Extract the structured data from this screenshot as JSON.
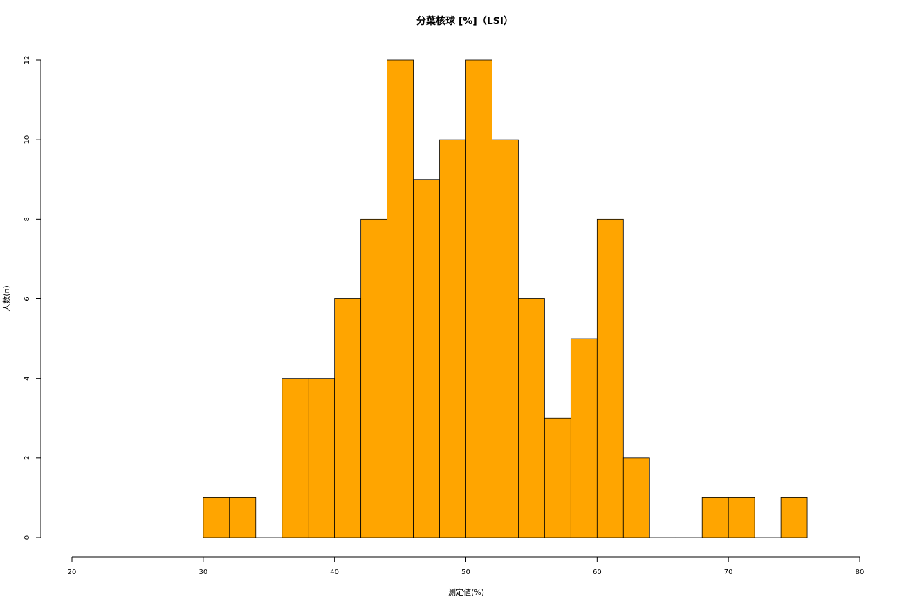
{
  "chart_data": {
    "type": "bar",
    "subtype": "histogram",
    "title": "分葉核球 [%]（LSI）",
    "xlabel": "測定値(%)",
    "ylabel": "人数(n)",
    "xlim": [
      20,
      80
    ],
    "ylim": [
      0,
      12
    ],
    "x_ticks": [
      20,
      30,
      40,
      50,
      60,
      70,
      80
    ],
    "y_ticks": [
      0,
      2,
      4,
      6,
      8,
      10,
      12
    ],
    "bins": [
      {
        "start": 30,
        "end": 32,
        "count": 1
      },
      {
        "start": 32,
        "end": 34,
        "count": 1
      },
      {
        "start": 34,
        "end": 36,
        "count": 0
      },
      {
        "start": 36,
        "end": 38,
        "count": 4
      },
      {
        "start": 38,
        "end": 40,
        "count": 4
      },
      {
        "start": 40,
        "end": 42,
        "count": 6
      },
      {
        "start": 42,
        "end": 44,
        "count": 8
      },
      {
        "start": 44,
        "end": 46,
        "count": 12
      },
      {
        "start": 46,
        "end": 48,
        "count": 9
      },
      {
        "start": 48,
        "end": 50,
        "count": 10
      },
      {
        "start": 50,
        "end": 52,
        "count": 12
      },
      {
        "start": 52,
        "end": 54,
        "count": 10
      },
      {
        "start": 54,
        "end": 56,
        "count": 6
      },
      {
        "start": 56,
        "end": 58,
        "count": 3
      },
      {
        "start": 58,
        "end": 60,
        "count": 5
      },
      {
        "start": 60,
        "end": 62,
        "count": 8
      },
      {
        "start": 62,
        "end": 64,
        "count": 2
      },
      {
        "start": 64,
        "end": 66,
        "count": 0
      },
      {
        "start": 66,
        "end": 68,
        "count": 0
      },
      {
        "start": 68,
        "end": 70,
        "count": 1
      },
      {
        "start": 70,
        "end": 72,
        "count": 1
      },
      {
        "start": 72,
        "end": 74,
        "count": 0
      },
      {
        "start": 74,
        "end": 76,
        "count": 1
      }
    ],
    "bar_color": "#FFA500",
    "border_color": "#000000",
    "grid": false
  }
}
